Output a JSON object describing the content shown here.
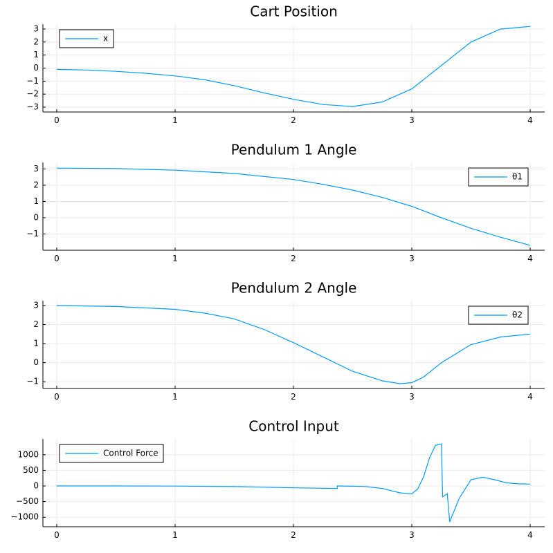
{
  "chart_data": [
    {
      "type": "line",
      "title": "Cart Position",
      "xlim": [
        0,
        4
      ],
      "ylim": [
        -3,
        3
      ],
      "xticks": [
        0,
        1,
        2,
        3,
        4
      ],
      "yticks": [
        3,
        2,
        1,
        0,
        -1,
        -2,
        -3
      ],
      "xtick_labels": [
        "0",
        "1",
        "2",
        "3",
        "4"
      ],
      "ytick_labels": [
        "3",
        "2",
        "1",
        "0",
        "−1",
        "−2",
        "−3"
      ],
      "grid": true,
      "legend_position": "top-left",
      "series": [
        {
          "name": "x",
          "color": "#009AFA",
          "x": [
            0,
            0.25,
            0.5,
            0.75,
            1.0,
            1.25,
            1.5,
            1.75,
            2.0,
            2.25,
            2.5,
            2.75,
            3.0,
            3.25,
            3.5,
            3.75,
            4.0
          ],
          "y": [
            -0.1,
            -0.15,
            -0.25,
            -0.4,
            -0.6,
            -0.9,
            -1.35,
            -1.9,
            -2.4,
            -2.8,
            -2.95,
            -2.6,
            -1.6,
            0.2,
            2.0,
            3.0,
            3.2
          ]
        }
      ]
    },
    {
      "type": "line",
      "title": "Pendulum 1 Angle",
      "xlim": [
        0,
        4
      ],
      "ylim": [
        -1.7,
        3.1
      ],
      "xticks": [
        0,
        1,
        2,
        3,
        4
      ],
      "yticks": [
        3,
        2,
        1,
        0,
        -1
      ],
      "xtick_labels": [
        "0",
        "1",
        "2",
        "3",
        "4"
      ],
      "ytick_labels": [
        "3",
        "2",
        "1",
        "0",
        "−1"
      ],
      "grid": true,
      "legend_position": "top-right",
      "series": [
        {
          "name": "θ1",
          "color": "#009AFA",
          "x": [
            0,
            0.5,
            1.0,
            1.5,
            2.0,
            2.25,
            2.5,
            2.75,
            3.0,
            3.25,
            3.5,
            3.75,
            4.0
          ],
          "y": [
            3.05,
            3.02,
            2.92,
            2.72,
            2.35,
            2.05,
            1.7,
            1.25,
            0.7,
            0.0,
            -0.65,
            -1.2,
            -1.7
          ]
        }
      ]
    },
    {
      "type": "line",
      "title": "Pendulum 2 Angle",
      "xlim": [
        0,
        4
      ],
      "ylim": [
        -1.1,
        3.0
      ],
      "xticks": [
        0,
        1,
        2,
        3,
        4
      ],
      "yticks": [
        3,
        2,
        1,
        0,
        -1
      ],
      "xtick_labels": [
        "0",
        "1",
        "2",
        "3",
        "4"
      ],
      "ytick_labels": [
        "3",
        "2",
        "1",
        "0",
        "−1"
      ],
      "grid": true,
      "legend_position": "top-right",
      "series": [
        {
          "name": "θ2",
          "color": "#009AFA",
          "x": [
            0,
            0.5,
            1.0,
            1.25,
            1.5,
            1.75,
            2.0,
            2.25,
            2.5,
            2.75,
            2.9,
            3.0,
            3.1,
            3.25,
            3.5,
            3.75,
            4.0
          ],
          "y": [
            3.0,
            2.95,
            2.8,
            2.6,
            2.3,
            1.75,
            1.05,
            0.3,
            -0.45,
            -0.95,
            -1.1,
            -1.05,
            -0.75,
            0.0,
            0.95,
            1.35,
            1.5
          ]
        }
      ]
    },
    {
      "type": "line",
      "title": "Control Input",
      "xlim": [
        0,
        4
      ],
      "ylim": [
        -1150,
        1350
      ],
      "xticks": [
        0,
        1,
        2,
        3,
        4
      ],
      "yticks": [
        1000,
        500,
        0,
        -500,
        -1000
      ],
      "xtick_labels": [
        "0",
        "1",
        "2",
        "3",
        "4"
      ],
      "ytick_labels": [
        "1000",
        "500",
        "0",
        "−500",
        "−1000"
      ],
      "grid": true,
      "legend_position": "top-left",
      "series": [
        {
          "name": "Control Force",
          "color": "#009AFA",
          "x": [
            0,
            0.5,
            1.0,
            1.5,
            2.0,
            2.37,
            2.37,
            2.6,
            2.75,
            2.9,
            3.0,
            3.05,
            3.1,
            3.15,
            3.2,
            3.25,
            3.26,
            3.3,
            3.32,
            3.4,
            3.5,
            3.6,
            3.7,
            3.8,
            3.9,
            4.0
          ],
          "y": [
            0,
            0,
            -5,
            -20,
            -60,
            -80,
            0,
            -15,
            -80,
            -220,
            -250,
            -100,
            300,
            900,
            1300,
            1350,
            -350,
            -250,
            -1150,
            -400,
            200,
            280,
            200,
            100,
            70,
            60
          ]
        }
      ]
    }
  ]
}
